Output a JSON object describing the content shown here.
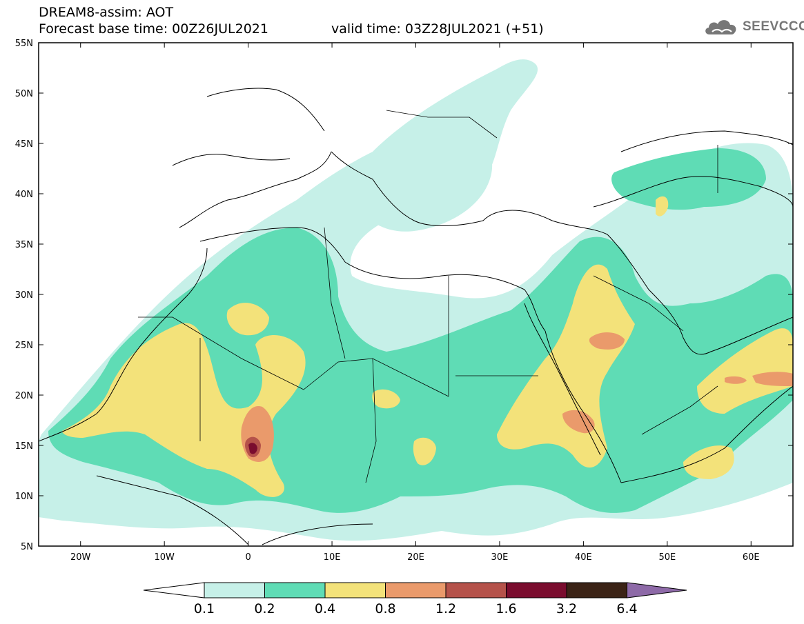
{
  "header": {
    "line1": "DREAM8-assim: AOT",
    "base_time": "Forecast base time: 00Z26JUL2021",
    "valid_time": "valid time: 03Z28JUL2021 (+51)"
  },
  "logo": {
    "text": "SEEVCCC",
    "icon": "cloud-icon"
  },
  "map": {
    "lon_range": [
      -25,
      65
    ],
    "lat_range": [
      5,
      55
    ],
    "lat_ticks": [
      {
        "value": 55,
        "label": "55N"
      },
      {
        "value": 50,
        "label": "50N"
      },
      {
        "value": 45,
        "label": "45N"
      },
      {
        "value": 40,
        "label": "40N"
      },
      {
        "value": 35,
        "label": "35N"
      },
      {
        "value": 30,
        "label": "30N"
      },
      {
        "value": 25,
        "label": "25N"
      },
      {
        "value": 20,
        "label": "20N"
      },
      {
        "value": 15,
        "label": "15N"
      },
      {
        "value": 10,
        "label": "10N"
      },
      {
        "value": 5,
        "label": "5N"
      }
    ],
    "lon_ticks": [
      {
        "value": -20,
        "label": "20W"
      },
      {
        "value": -10,
        "label": "10W"
      },
      {
        "value": 0,
        "label": "0"
      },
      {
        "value": 10,
        "label": "10E"
      },
      {
        "value": 20,
        "label": "20E"
      },
      {
        "value": 30,
        "label": "30E"
      },
      {
        "value": 40,
        "label": "40E"
      },
      {
        "value": 50,
        "label": "50E"
      },
      {
        "value": 60,
        "label": "60E"
      }
    ]
  },
  "colorbar": {
    "bins": [
      {
        "color": "#c6f0e8"
      },
      {
        "color": "#5fdcb5"
      },
      {
        "color": "#f3e27a"
      },
      {
        "color": "#ea9a6b"
      },
      {
        "color": "#b5524a"
      },
      {
        "color": "#7a0c2e"
      },
      {
        "color": "#3b2316"
      }
    ],
    "over_color": "#8e6aa8",
    "under_color": "#ffffff",
    "labels": [
      "0.1",
      "0.2",
      "0.4",
      "0.8",
      "1.2",
      "1.6",
      "3.2",
      "6.4"
    ]
  }
}
